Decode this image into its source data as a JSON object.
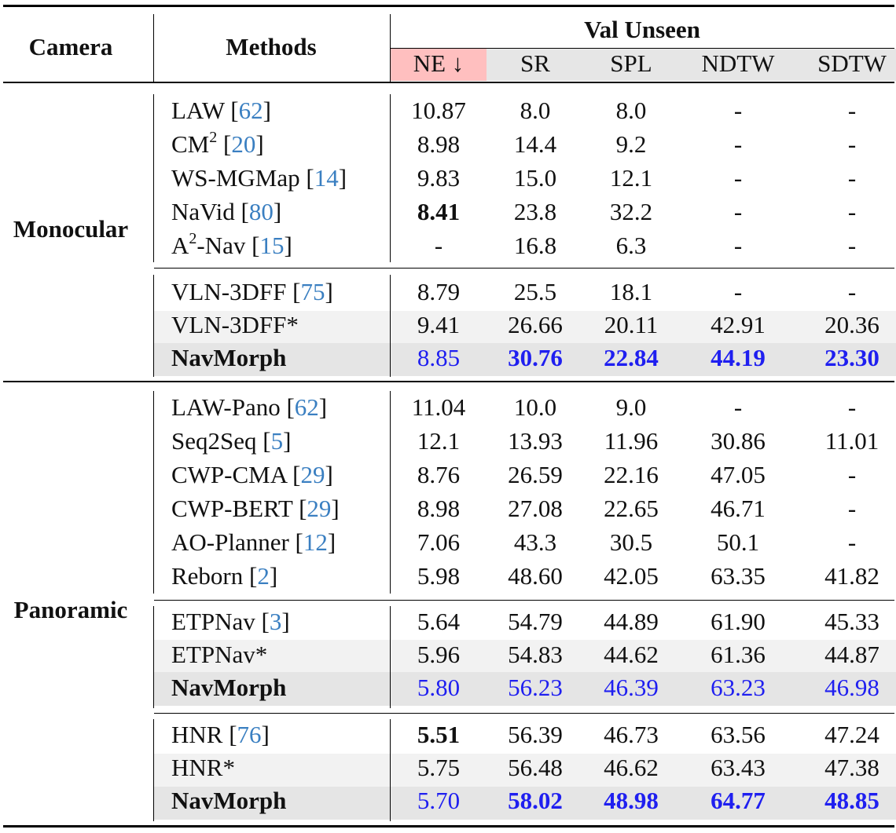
{
  "header": {
    "camera": "Camera",
    "methods": "Methods",
    "group": "Val Unseen",
    "metrics": [
      "NE ↓",
      "SR",
      "SPL",
      "NDTW",
      "SDTW"
    ]
  },
  "colors": {
    "ne_highlight": "#ffbfbf",
    "header_gray": "#e6e6e6",
    "row_light": "#f2f2f2",
    "row_dark": "#e5e5e5",
    "blue": "#1f1ff0",
    "ref": "#3a7fc1"
  },
  "sections": {
    "mono": {
      "label": "Monocular"
    },
    "pano": {
      "label": "Panoramic"
    }
  },
  "rows": [
    {
      "name": "LAW",
      "ref": "62",
      "v": [
        "10.87",
        "8.0",
        "8.0",
        "-",
        "-"
      ]
    },
    {
      "name": "CM",
      "sup": "2",
      "ref": "20",
      "v": [
        "8.98",
        "14.4",
        "9.2",
        "-",
        "-"
      ]
    },
    {
      "name": "WS-MGMap",
      "ref": "14",
      "v": [
        "9.83",
        "15.0",
        "12.1",
        "-",
        "-"
      ]
    },
    {
      "name": "NaVid",
      "ref": "80",
      "v": [
        "8.41",
        "23.8",
        "32.2",
        "-",
        "-"
      ]
    },
    {
      "name": "-Nav",
      "pre": "A",
      "sup": "2",
      "ref": "15",
      "v": [
        "-",
        "16.8",
        "6.3",
        "-",
        "-"
      ]
    },
    {
      "name": "VLN-3DFF",
      "ref": "75",
      "v": [
        "8.79",
        "25.5",
        "18.1",
        "-",
        "-"
      ]
    },
    {
      "name": "VLN-3DFF*",
      "v": [
        "9.41",
        "26.66",
        "20.11",
        "42.91",
        "20.36"
      ]
    },
    {
      "name": "NavMorph",
      "v": [
        "8.85",
        "30.76",
        "22.84",
        "44.19",
        "23.30"
      ]
    },
    {
      "name": "LAW-Pano",
      "ref": "62",
      "v": [
        "11.04",
        "10.0",
        "9.0",
        "-",
        "-"
      ]
    },
    {
      "name": "Seq2Seq",
      "ref": "5",
      "v": [
        "12.1",
        "13.93",
        "11.96",
        "30.86",
        "11.01"
      ]
    },
    {
      "name": "CWP-CMA",
      "ref": "29",
      "v": [
        "8.76",
        "26.59",
        "22.16",
        "47.05",
        "-"
      ]
    },
    {
      "name": "CWP-BERT",
      "ref": "29",
      "v": [
        "8.98",
        "27.08",
        "22.65",
        "46.71",
        "-"
      ]
    },
    {
      "name": "AO-Planner",
      "ref": "12",
      "v": [
        "7.06",
        "43.3",
        "30.5",
        "50.1",
        "-"
      ]
    },
    {
      "name": "Reborn",
      "ref": "2",
      "v": [
        "5.98",
        "48.60",
        "42.05",
        "63.35",
        "41.82"
      ]
    },
    {
      "name": "ETPNav",
      "ref": "3",
      "v": [
        "5.64",
        "54.79",
        "44.89",
        "61.90",
        "45.33"
      ]
    },
    {
      "name": "ETPNav*",
      "v": [
        "5.96",
        "54.83",
        "44.62",
        "61.36",
        "44.87"
      ]
    },
    {
      "name": "NavMorph",
      "v": [
        "5.80",
        "56.23",
        "46.39",
        "63.23",
        "46.98"
      ]
    },
    {
      "name": "HNR",
      "ref": "76",
      "v": [
        "5.51",
        "56.39",
        "46.73",
        "63.56",
        "47.24"
      ]
    },
    {
      "name": "HNR*",
      "v": [
        "5.75",
        "56.48",
        "46.62",
        "63.43",
        "47.38"
      ]
    },
    {
      "name": "NavMorph",
      "v": [
        "5.70",
        "58.02",
        "48.98",
        "64.77",
        "48.85"
      ]
    }
  ]
}
